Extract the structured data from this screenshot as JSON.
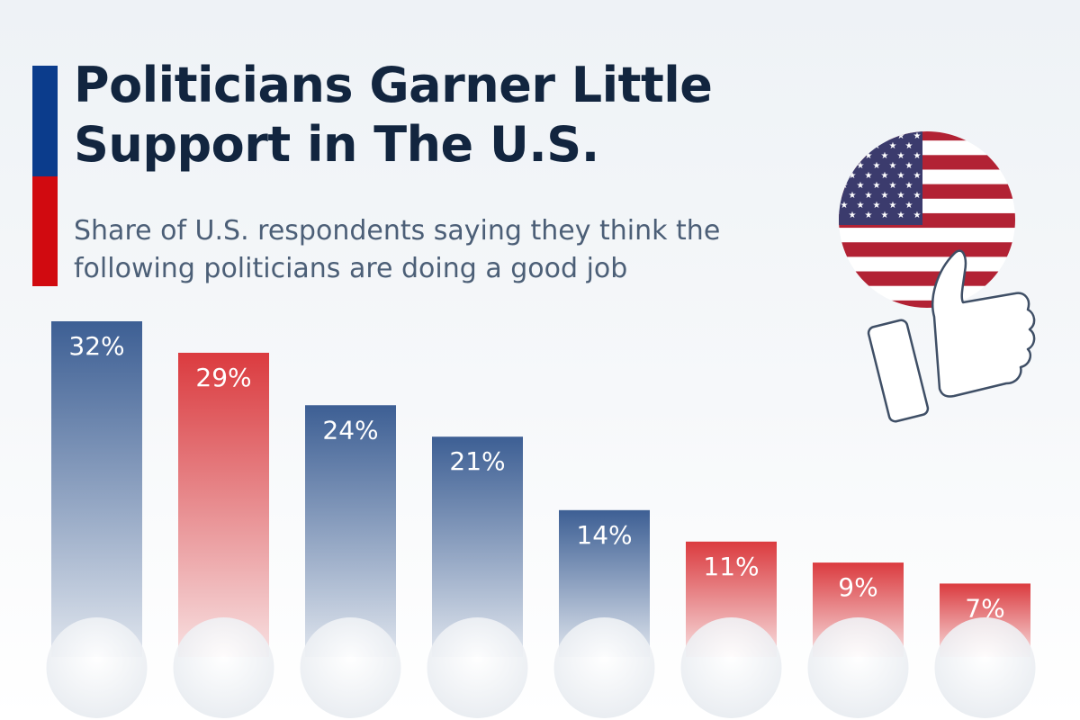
{
  "header": {
    "title": "Politicians Garner Little Support in The U.S.",
    "subtitle": "Share of U.S. respondents saying they think the following politicians are doing a good job"
  },
  "colors": {
    "accent_blue": "#0b3c8c",
    "accent_red": "#d10a10",
    "bar_blue": "#3d5f94",
    "bar_red": "#db3b3f",
    "title": "#12253f",
    "subtitle": "#4c5f77"
  },
  "illustration": {
    "icons": [
      "us-flag-icon",
      "thumbs-up-icon"
    ]
  },
  "chart_data": {
    "type": "bar",
    "title": "Politicians Garner Little Support in The U.S.",
    "subtitle": "Share of U.S. respondents saying they think the following politicians are doing a good job",
    "categories": [
      "",
      "",
      "",
      "",
      "",
      "",
      "",
      ""
    ],
    "values": [
      32,
      29,
      24,
      21,
      14,
      11,
      9,
      7
    ],
    "value_labels": [
      "32%",
      "29%",
      "24%",
      "21%",
      "14%",
      "11%",
      "9%",
      "7%"
    ],
    "bar_colors": [
      "blue",
      "red",
      "blue",
      "blue",
      "blue",
      "red",
      "red",
      "red"
    ],
    "unit": "%",
    "ylim": [
      0,
      32
    ],
    "grid": false,
    "legend": "none",
    "category_icons": [
      "portrait-photo-icon",
      "portrait-photo-icon",
      "portrait-photo-icon",
      "portrait-photo-icon",
      "portrait-photo-icon",
      "portrait-photo-icon",
      "portrait-photo-icon",
      "portrait-photo-icon"
    ]
  }
}
